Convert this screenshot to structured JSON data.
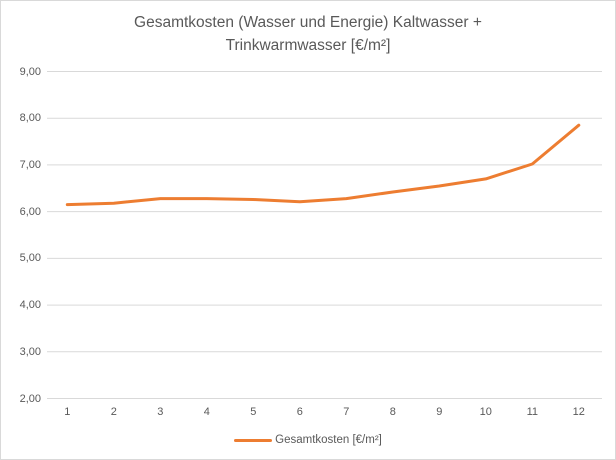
{
  "window": {
    "background": "#ffffff",
    "border_color": "#d9d9d9"
  },
  "chart_data": {
    "type": "line",
    "title": "Gesamtkosten (Wasser und Energie) Kaltwasser + Trinkwarmwasser [€/m²]",
    "title_lines": [
      "Gesamtkosten (Wasser und Energie) Kaltwasser +",
      "Trinkwarmwasser [€/m²]"
    ],
    "categories": [
      "1",
      "2",
      "3",
      "4",
      "5",
      "6",
      "7",
      "8",
      "9",
      "10",
      "11",
      "12"
    ],
    "series": [
      {
        "name": "Gesamtkosten [€/m²]",
        "values": [
          6.15,
          6.18,
          6.28,
          6.28,
          6.26,
          6.21,
          6.28,
          6.42,
          6.55,
          6.7,
          7.02,
          7.85
        ]
      }
    ],
    "xlabel": "",
    "ylabel": "",
    "ylim": [
      2,
      9
    ],
    "y_ticks": [
      "9,00",
      "8,00",
      "7,00",
      "6,00",
      "5,00",
      "4,00",
      "3,00",
      "2,00"
    ],
    "grid": true,
    "legend_position": "bottom",
    "line_color": "#ED7D31",
    "gridline_color": "#D9D9D9",
    "text_color": "#595959"
  }
}
